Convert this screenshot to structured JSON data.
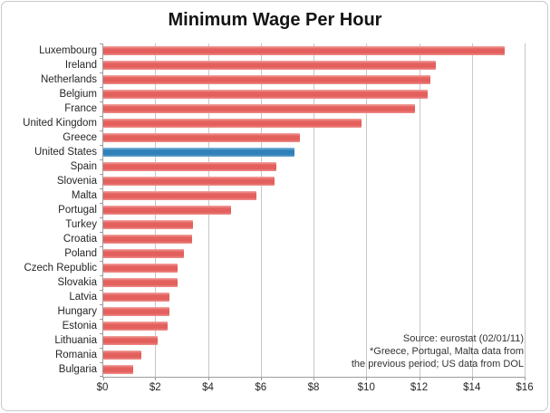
{
  "title": "Minimum Wage Per Hour",
  "source_note": {
    "line1": "Source: eurostat (02/01/11)",
    "line2": "*Greece, Portugal, Malta data from",
    "line3": "the previous period; US data from DOL"
  },
  "colors": {
    "bar_default": "#e4615e",
    "bar_highlight": "#3181ba",
    "gridline": "#c7c7c7",
    "axis_line": "#9c9c9c",
    "text": "#262626"
  },
  "chart_data": {
    "type": "bar",
    "orientation": "horizontal",
    "title": "Minimum Wage Per Hour",
    "xlabel": "",
    "ylabel": "",
    "xlim": [
      0,
      16
    ],
    "grid": true,
    "x_ticks": [
      "$0",
      "$2",
      "$4",
      "$6",
      "$8",
      "$10",
      "$12",
      "$14",
      "$16"
    ],
    "x_tick_values": [
      0,
      2,
      4,
      6,
      8,
      10,
      12,
      14,
      16
    ],
    "categories": [
      "Luxembourg",
      "Ireland",
      "Netherlands",
      "Belgium",
      "France",
      "United Kingdom",
      "Greece",
      "United States",
      "Spain",
      "Slovenia",
      "Malta",
      "Portugal",
      "Turkey",
      "Croatia",
      "Poland",
      "Czech Republic",
      "Slovakia",
      "Latvia",
      "Hungary",
      "Estonia",
      "Lithuania",
      "Romania",
      "Bulgaria"
    ],
    "values": [
      15.2,
      12.6,
      12.4,
      12.3,
      11.8,
      9.8,
      7.45,
      7.25,
      6.55,
      6.5,
      5.8,
      4.85,
      3.4,
      3.35,
      3.05,
      2.8,
      2.8,
      2.5,
      2.5,
      2.45,
      2.05,
      1.45,
      1.15
    ],
    "highlighted_category": "United States",
    "legend": null
  }
}
